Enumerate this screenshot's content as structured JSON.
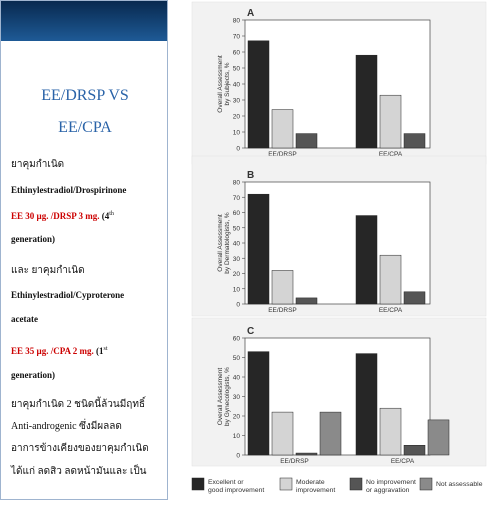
{
  "slide": {
    "title_line1": "EE/DRSP VS",
    "title_line2": "EE/CPA",
    "lines": [
      {
        "parts": [
          {
            "text": "ยาคุมกำเนิด",
            "cls": "thai"
          }
        ]
      },
      {
        "parts": [
          {
            "text": "Ethinylestradiol/Drospirinone",
            "cls": "bold"
          }
        ]
      },
      {
        "parts": [
          {
            "text": "EE 30 µg. /DRSP 3 mg.",
            "cls": "red"
          },
          {
            "text": " (4",
            "cls": "bold"
          },
          {
            "text": "th",
            "cls": "sup"
          }
        ]
      },
      {
        "parts": [
          {
            "text": "generation)",
            "cls": "bold"
          }
        ]
      },
      {
        "parts": [
          {
            "text": "และ ยาคุมกำเนิด",
            "cls": "thai"
          }
        ]
      },
      {
        "parts": [
          {
            "text": "Ethinylestradiol/Cyproterone",
            "cls": "bold"
          }
        ]
      },
      {
        "parts": [
          {
            "text": "acetate",
            "cls": "bold"
          }
        ]
      },
      {
        "parts": [
          {
            "text": "EE 35 µg. /CPA 2 mg.",
            "cls": "red"
          },
          {
            "text": " (1",
            "cls": "bold"
          },
          {
            "text": "st",
            "cls": "sup"
          }
        ]
      },
      {
        "parts": [
          {
            "text": "generation)",
            "cls": "bold"
          }
        ]
      },
      {
        "parts": [
          {
            "text": "ยาคุมกำเนิด 2 ชนิดนี้ล้วนมีฤทธิ์",
            "cls": "thai"
          }
        ]
      },
      {
        "parts": [
          {
            "text": "Anti-androgenic ซึ่งมีผลลด",
            "cls": "thai"
          }
        ]
      },
      {
        "parts": [
          {
            "text": "อาการข้างเคียงของยาคุมกำเนิด",
            "cls": "thai"
          }
        ]
      },
      {
        "parts": [
          {
            "text": "ได้แก่ ลดสิว ลดหน้ามันและ เป็น",
            "cls": "thai"
          }
        ]
      }
    ]
  },
  "colors": {
    "excellent": "#262626",
    "moderate": "#d4d4d4",
    "no_improvement": "#555555",
    "not_assessable": "#8a8a8a",
    "panel_bg": "#f2f2f2"
  },
  "chart_data": [
    {
      "type": "bar",
      "panel": "A",
      "ylabel": "Overall Assessment by Subjects, %",
      "ylim": [
        0,
        80
      ],
      "yticks": [
        0,
        10,
        20,
        30,
        40,
        50,
        60,
        70,
        80
      ],
      "categories": [
        "EE/DRSP",
        "EE/CPA"
      ],
      "series": [
        {
          "name": "Excellent or good improvement",
          "values": [
            67,
            58
          ]
        },
        {
          "name": "Moderate improvement",
          "values": [
            24,
            33
          ]
        },
        {
          "name": "No improvement or aggravation",
          "values": [
            9,
            9
          ]
        }
      ]
    },
    {
      "type": "bar",
      "panel": "B",
      "ylabel": "Overall Assessment by Dermatologists, %",
      "ylim": [
        0,
        80
      ],
      "yticks": [
        0,
        10,
        20,
        30,
        40,
        50,
        60,
        70,
        80
      ],
      "categories": [
        "EE/DRSP",
        "EE/CPA"
      ],
      "series": [
        {
          "name": "Excellent or good improvement",
          "values": [
            72,
            58
          ]
        },
        {
          "name": "Moderate improvement",
          "values": [
            22,
            32
          ]
        },
        {
          "name": "No improvement or aggravation",
          "values": [
            4,
            8
          ]
        }
      ]
    },
    {
      "type": "bar",
      "panel": "C",
      "ylabel": "Overall Assessment by Gynecologists, %",
      "ylim": [
        0,
        60
      ],
      "yticks": [
        0,
        10,
        20,
        30,
        40,
        50,
        60
      ],
      "categories": [
        "EE/DRSP",
        "EE/CPA"
      ],
      "series": [
        {
          "name": "Excellent or good improvement",
          "values": [
            53,
            52
          ]
        },
        {
          "name": "Moderate improvement",
          "values": [
            22,
            24
          ]
        },
        {
          "name": "No improvement or aggravation",
          "values": [
            1,
            5
          ]
        },
        {
          "name": "Not assessable",
          "values": [
            22,
            18
          ]
        }
      ]
    }
  ],
  "legend": [
    {
      "line1": "Excellent or",
      "line2": "good improvement",
      "color_key": "excellent"
    },
    {
      "line1": "Moderate",
      "line2": "improvement",
      "color_key": "moderate"
    },
    {
      "line1": "No improvement",
      "line2": "or aggravation",
      "color_key": "no_improvement"
    },
    {
      "line1": "Not assessable",
      "line2": "",
      "color_key": "not_assessable"
    }
  ]
}
